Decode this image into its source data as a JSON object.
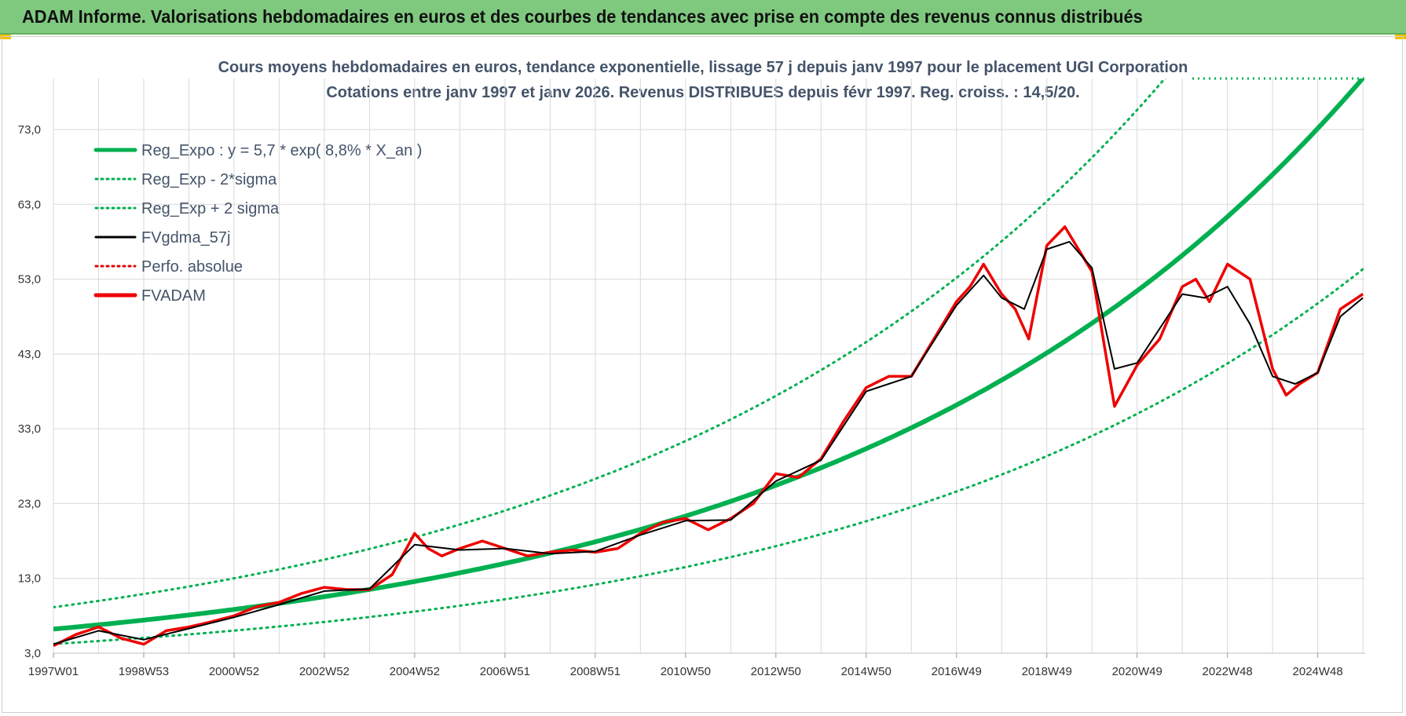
{
  "banner": {
    "title": "ADAM Informe. Valorisations hebdomadaires en euros et des courbes de tendances avec prise en compte des revenus connus distribués"
  },
  "colors": {
    "banner_bg": "#7fc97f",
    "regression": "#00b050",
    "gdma": "#000000",
    "perfo": "#e00000",
    "fvadam": "#ee0000",
    "grid": "#d9d9d9"
  },
  "chart_data": {
    "type": "line",
    "title": "Cours moyens hebdomadaires en euros, tendance exponentielle, lissage 57 j depuis janv 1997  pour le placement UGI Corporation",
    "subtitle": "Cotations entre janv 1997 et janv 2026. Revenus DISTRIBUES depuis févr 1997. Reg. croiss. : 14,5/20.",
    "xlabel": "",
    "ylabel": "",
    "ylim": [
      3,
      80
    ],
    "y_ticks": [
      "3,0",
      "13,0",
      "23,0",
      "33,0",
      "43,0",
      "53,0",
      "63,0",
      "73,0"
    ],
    "y_tick_values": [
      3,
      13,
      23,
      33,
      43,
      53,
      63,
      73
    ],
    "x_ticks": [
      "1997W01",
      "1998W53",
      "2000W52",
      "2002W52",
      "2004W52",
      "2006W51",
      "2008W51",
      "2010W50",
      "2012W50",
      "2014W50",
      "2016W49",
      "2018W49",
      "2020W49",
      "2022W48",
      "2024W48"
    ],
    "x_tick_years": [
      1997.0,
      1999.0,
      2001.0,
      2003.0,
      2005.0,
      2007.0,
      2009.0,
      2011.0,
      2013.0,
      2015.0,
      2017.0,
      2019.0,
      2021.0,
      2023.0,
      2025.0
    ],
    "x_range": [
      1997.0,
      2026.05
    ],
    "legend_position": "top-left",
    "regression": {
      "a": 5.7,
      "rate_pct": 8.8,
      "sigma_factor": 1.47
    },
    "legend": [
      {
        "label": "Reg_Expo : y = 5,7 * exp( 8,8% *  X_an )",
        "style": "solid-thick",
        "color": "#00b050"
      },
      {
        "label": "Reg_Exp - 2*sigma",
        "style": "dotted",
        "color": "#00b050"
      },
      {
        "label": "Reg_Exp + 2 sigma",
        "style": "dotted",
        "color": "#00b050"
      },
      {
        "label": "FVgdma_57j",
        "style": "solid",
        "color": "#000000"
      },
      {
        "label": "Perfo. absolue",
        "style": "dotted",
        "color": "#e00000"
      },
      {
        "label": "FVADAM",
        "style": "solid-thick",
        "color": "#ee0000"
      }
    ],
    "series": [
      {
        "name": "FVADAM",
        "x": [
          1997.0,
          1997.5,
          1998.0,
          1998.5,
          1999.0,
          1999.5,
          2000.0,
          2000.5,
          2001.0,
          2001.5,
          2002.0,
          2002.5,
          2003.0,
          2003.5,
          2004.0,
          2004.5,
          2005.0,
          2005.3,
          2005.6,
          2006.0,
          2006.5,
          2007.0,
          2007.5,
          2008.0,
          2008.5,
          2009.0,
          2009.5,
          2010.0,
          2010.5,
          2011.0,
          2011.5,
          2012.0,
          2012.5,
          2013.0,
          2013.5,
          2014.0,
          2014.5,
          2015.0,
          2015.5,
          2016.0,
          2016.5,
          2017.0,
          2017.3,
          2017.6,
          2018.0,
          2018.3,
          2018.6,
          2019.0,
          2019.4,
          2019.7,
          2020.0,
          2020.5,
          2021.0,
          2021.5,
          2022.0,
          2022.3,
          2022.6,
          2023.0,
          2023.5,
          2024.0,
          2024.3,
          2024.6,
          2025.0,
          2025.5,
          2026.0
        ],
        "values": [
          4.0,
          5.5,
          6.5,
          5.0,
          4.2,
          6.0,
          6.5,
          7.2,
          8.0,
          9.2,
          9.8,
          11.0,
          11.8,
          11.5,
          11.5,
          13.5,
          19.0,
          17.0,
          16.0,
          17.0,
          18.0,
          17.0,
          16.0,
          16.5,
          16.8,
          16.5,
          17.0,
          19.0,
          20.5,
          21.0,
          19.5,
          21.0,
          23.0,
          27.0,
          26.5,
          29.0,
          34.0,
          38.5,
          40.0,
          40.0,
          45.0,
          50.0,
          52.0,
          55.0,
          51.0,
          49.0,
          45.0,
          57.5,
          60.0,
          57.0,
          54.0,
          36.0,
          41.5,
          45.0,
          52.0,
          53.0,
          50.0,
          55.0,
          53.0,
          41.0,
          37.5,
          39.0,
          40.5,
          49.0,
          51.0
        ]
      },
      {
        "name": "FVgdma_57j",
        "x": [
          1997.0,
          1998.0,
          1999.0,
          2000.0,
          2001.0,
          2002.0,
          2003.0,
          2004.0,
          2005.0,
          2006.0,
          2007.0,
          2008.0,
          2009.0,
          2010.0,
          2011.0,
          2012.0,
          2013.0,
          2014.0,
          2015.0,
          2016.0,
          2017.0,
          2017.6,
          2018.0,
          2018.5,
          2019.0,
          2019.5,
          2020.0,
          2020.5,
          2021.0,
          2022.0,
          2022.5,
          2023.0,
          2023.5,
          2024.0,
          2024.5,
          2025.0,
          2025.5,
          2026.0
        ],
        "values": [
          4.2,
          6.0,
          4.8,
          6.3,
          7.8,
          9.5,
          11.3,
          11.6,
          17.5,
          16.8,
          17.0,
          16.3,
          16.6,
          18.8,
          20.7,
          20.8,
          26.0,
          28.8,
          38.0,
          40.0,
          49.5,
          53.5,
          50.5,
          49.0,
          57.0,
          58.0,
          54.5,
          41.0,
          41.8,
          51.0,
          50.5,
          52.0,
          47.0,
          40.0,
          39.0,
          40.5,
          48.0,
          50.5
        ]
      }
    ]
  }
}
